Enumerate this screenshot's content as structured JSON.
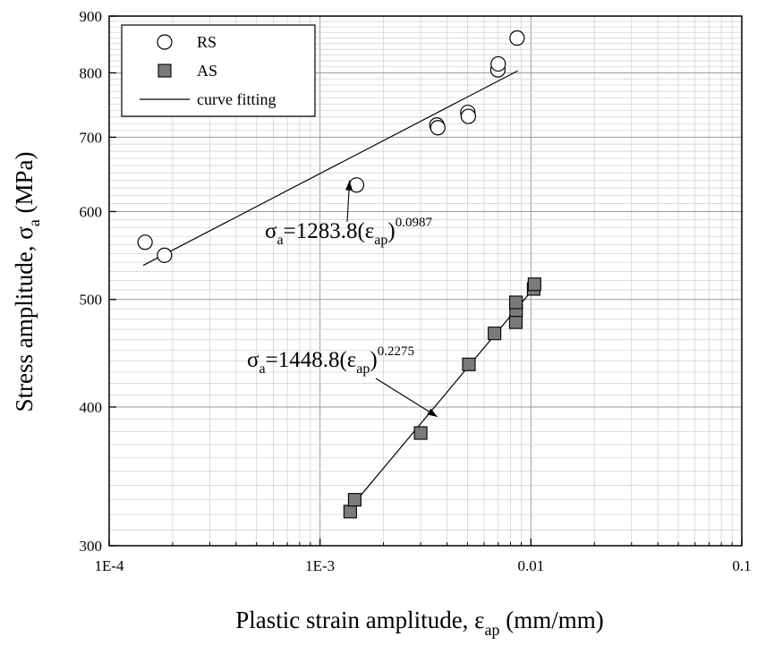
{
  "chart_data": {
    "type": "scatter",
    "xlabel": {
      "main": "Plastic strain amplitude, ε",
      "sub": "ap",
      "suffix": " (mm/mm)"
    },
    "ylabel": {
      "main": "Stress amplitude, σ",
      "sub": "a",
      "suffix": " (MPa)"
    },
    "x_scale": "log",
    "y_scale": "log",
    "xlim": [
      0.0001,
      0.1
    ],
    "ylim": [
      300,
      900
    ],
    "x_ticks": [
      {
        "value": 0.0001,
        "label": "1E-4"
      },
      {
        "value": 0.001,
        "label": "1E-3"
      },
      {
        "value": 0.01,
        "label": "0.01"
      },
      {
        "value": 0.1,
        "label": "0.1"
      }
    ],
    "y_ticks": [
      {
        "value": 300,
        "label": "300"
      },
      {
        "value": 400,
        "label": "400"
      },
      {
        "value": 500,
        "label": "500"
      },
      {
        "value": 600,
        "label": "600"
      },
      {
        "value": 700,
        "label": "700"
      },
      {
        "value": 800,
        "label": "800"
      },
      {
        "value": 900,
        "label": "900"
      }
    ],
    "grid": true,
    "legend_position": "top-left",
    "legend": [
      {
        "label": "RS",
        "marker": "open-circle"
      },
      {
        "label": "AS",
        "marker": "filled-square"
      },
      {
        "label": "curve fitting",
        "marker": "line"
      }
    ],
    "series": [
      {
        "name": "RS",
        "marker": "open-circle",
        "points": [
          {
            "x": 0.000148,
            "y": 563
          },
          {
            "x": 0.000183,
            "y": 548
          },
          {
            "x": 0.00149,
            "y": 634
          },
          {
            "x": 0.00358,
            "y": 718
          },
          {
            "x": 0.00362,
            "y": 714
          },
          {
            "x": 0.00502,
            "y": 737
          },
          {
            "x": 0.00505,
            "y": 731
          },
          {
            "x": 0.00697,
            "y": 805
          },
          {
            "x": 0.007,
            "y": 815
          },
          {
            "x": 0.0086,
            "y": 860
          }
        ]
      },
      {
        "name": "AS",
        "marker": "filled-square",
        "color": "#7a7a7a",
        "points": [
          {
            "x": 0.00139,
            "y": 322
          },
          {
            "x": 0.00146,
            "y": 330
          },
          {
            "x": 0.003,
            "y": 379
          },
          {
            "x": 0.00508,
            "y": 437
          },
          {
            "x": 0.00672,
            "y": 466
          },
          {
            "x": 0.00848,
            "y": 477
          },
          {
            "x": 0.00851,
            "y": 489
          },
          {
            "x": 0.00849,
            "y": 497
          },
          {
            "x": 0.0103,
            "y": 511
          },
          {
            "x": 0.0104,
            "y": 516
          }
        ]
      }
    ],
    "fits": [
      {
        "series": "RS",
        "coef": 1283.8,
        "exponent": 0.0987,
        "x_range": [
          0.000145,
          0.00867
        ]
      },
      {
        "series": "AS",
        "coef": 1448.8,
        "exponent": 0.2275,
        "x_range": [
          0.00143,
          0.0104
        ]
      }
    ],
    "annotations": [
      {
        "text": {
          "sym": "σ",
          "sub1": "a",
          "mid": "=1283.8(ε",
          "sub2": "ap",
          "close": ")",
          "sup": "0.0987"
        },
        "arrow_to": {
          "x": 0.00138,
          "y": 640
        }
      },
      {
        "text": {
          "sym": "σ",
          "sub1": "a",
          "mid": "=1448.8(ε",
          "sub2": "ap",
          "close": ")",
          "sup": "0.2275"
        },
        "arrow_to": {
          "x": 0.0036,
          "y": 392
        }
      }
    ]
  }
}
